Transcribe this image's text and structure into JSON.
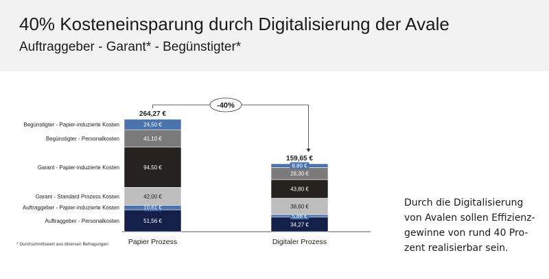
{
  "header": {
    "title": "40% Kosteneinsparung durch Digitalisierung der Avale",
    "subtitle": "Auftraggeber - Garant* - Begünstigter*"
  },
  "footnote": "* Durchschnittswert aus diversen Befragungen",
  "side_text": [
    "Durch die Digitalisierung",
    "von Avalen sollen Effizienz-",
    "gewinne von rund 40 Pro-",
    "zent realisierbar sein."
  ],
  "colors": {
    "auftraggeber_personalkosten": "#15204a",
    "auftraggeber_papier": "#4a73ad",
    "garant_standard": "#bdbdbd",
    "garant_papier": "#252220",
    "beguenstigter_personal": "#7a7a7a",
    "beguenstigter_papier": "#4a73ad"
  },
  "chart_data": {
    "type": "bar",
    "stacked": true,
    "categories": [
      "Papier Prozess",
      "Digitaler Prozess"
    ],
    "totals": [
      "264,27 €",
      "159,65 €"
    ],
    "total_values": [
      264.27,
      159.65
    ],
    "change_label": "-40%",
    "series": [
      {
        "name": "Auftraggeber - Personalkosten",
        "values": [
          51.56,
          34.27
        ],
        "labels": [
          "51,56 €",
          "34,27 €"
        ],
        "color": "#15204a",
        "text_color": "#ffffff"
      },
      {
        "name": "Auftraggeber - Papier-induzierte Kosten",
        "values": [
          10.61,
          5.88
        ],
        "labels": [
          "10,61 €",
          "5,88 €"
        ],
        "color": "#4a73ad",
        "text_color": "#ffffff"
      },
      {
        "name": "Garant - Standard Prozess Kosten",
        "values": [
          42.0,
          38.6
        ],
        "labels": [
          "42,00 €",
          "38,60 €"
        ],
        "color": "#bdbdbd",
        "text_color": "#1a1a1a"
      },
      {
        "name": "Garant - Papier-induzierte Kosten",
        "values": [
          94.5,
          43.8
        ],
        "labels": [
          "94,50 €",
          "43,80 €"
        ],
        "color": "#252220",
        "text_color": "#ffffff"
      },
      {
        "name": "Begünstigter - Personalkosten",
        "values": [
          41.1,
          28.3
        ],
        "labels": [
          "41,10 €",
          "28,30 €"
        ],
        "color": "#7a7a7a",
        "text_color": "#ffffff"
      },
      {
        "name": "Begünstigter - Papier-induzierte Kosten",
        "values": [
          24.5,
          8.8
        ],
        "labels": [
          "24,50 €",
          "8,80 €"
        ],
        "color": "#4a73ad",
        "text_color": "#ffffff"
      }
    ]
  }
}
